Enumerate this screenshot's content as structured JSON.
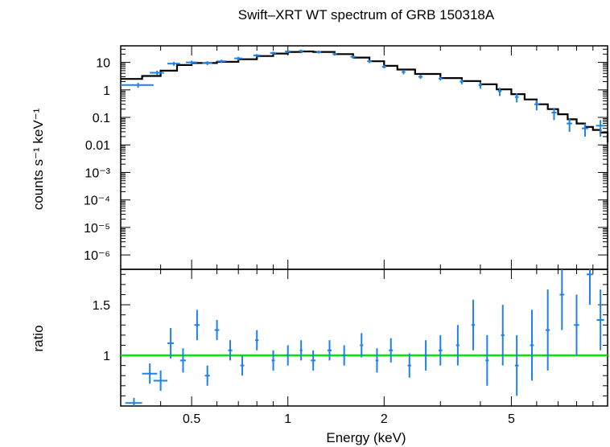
{
  "chart_data": [
    {
      "panel": "spectrum",
      "type": "scatter",
      "title": "Swift–XRT WT spectrum of GRB 150318A",
      "ylabel": "counts s⁻¹ keV⁻¹",
      "xlabel": "",
      "x_scale": "log",
      "y_scale": "log",
      "xlim": [
        0.3,
        10
      ],
      "ylim": [
        3e-07,
        40
      ],
      "y_ticks": [
        {
          "value": 10,
          "label": "10"
        },
        {
          "value": 1,
          "label": "1"
        },
        {
          "value": 0.1,
          "label": "0.1"
        },
        {
          "value": 0.01,
          "label": "0.01"
        },
        {
          "value": 0.001,
          "label": "10⁻³"
        },
        {
          "value": 0.0001,
          "label": "10⁻⁴"
        },
        {
          "value": 1e-05,
          "label": "10⁻⁵"
        },
        {
          "value": 1e-06,
          "label": "10⁻⁶"
        }
      ],
      "series": [
        {
          "kind": "data",
          "color": "#1e82e6",
          "points": [
            {
              "x": 0.34,
              "y": 1.5,
              "xerr": 0.04,
              "yerr": 0.3
            },
            {
              "x": 0.39,
              "y": 4.2,
              "xerr": 0.02,
              "yerr": 0.8
            },
            {
              "x": 0.44,
              "y": 9.0,
              "xerr": 0.02,
              "yerr": 1.5
            },
            {
              "x": 0.5,
              "y": 10.0,
              "xerr": 0.02,
              "yerr": 1.5
            },
            {
              "x": 0.56,
              "y": 9.5,
              "xerr": 0.02,
              "yerr": 1.5
            },
            {
              "x": 0.62,
              "y": 11.0,
              "xerr": 0.02,
              "yerr": 1.5
            },
            {
              "x": 0.7,
              "y": 14.0,
              "xerr": 0.02,
              "yerr": 2.0
            },
            {
              "x": 0.8,
              "y": 18.0,
              "xerr": 0.02,
              "yerr": 2.0
            },
            {
              "x": 0.9,
              "y": 22.0,
              "xerr": 0.02,
              "yerr": 2.5
            },
            {
              "x": 1.0,
              "y": 25.0,
              "xerr": 0.02,
              "yerr": 3.0
            },
            {
              "x": 1.1,
              "y": 26.0,
              "xerr": 0.02,
              "yerr": 3.0
            },
            {
              "x": 1.25,
              "y": 24.0,
              "xerr": 0.02,
              "yerr": 3.0
            },
            {
              "x": 1.4,
              "y": 20.0,
              "xerr": 0.02,
              "yerr": 2.5
            },
            {
              "x": 1.6,
              "y": 16.0,
              "xerr": 0.03,
              "yerr": 2.0
            },
            {
              "x": 1.8,
              "y": 11.0,
              "xerr": 0.03,
              "yerr": 1.5
            },
            {
              "x": 2.0,
              "y": 7.0,
              "xerr": 0.03,
              "yerr": 1.0
            },
            {
              "x": 2.3,
              "y": 4.5,
              "xerr": 0.03,
              "yerr": 0.8
            },
            {
              "x": 2.6,
              "y": 3.0,
              "xerr": 0.04,
              "yerr": 0.5
            },
            {
              "x": 3.0,
              "y": 2.6,
              "xerr": 0.04,
              "yerr": 0.4
            },
            {
              "x": 3.5,
              "y": 2.0,
              "xerr": 0.05,
              "yerr": 0.4
            },
            {
              "x": 4.0,
              "y": 1.5,
              "xerr": 0.05,
              "yerr": 0.4
            },
            {
              "x": 4.6,
              "y": 0.9,
              "xerr": 0.06,
              "yerr": 0.3
            },
            {
              "x": 5.2,
              "y": 0.55,
              "xerr": 0.07,
              "yerr": 0.2
            },
            {
              "x": 6.0,
              "y": 0.3,
              "xerr": 0.1,
              "yerr": 0.12
            },
            {
              "x": 6.8,
              "y": 0.15,
              "xerr": 0.12,
              "yerr": 0.07
            },
            {
              "x": 7.6,
              "y": 0.06,
              "xerr": 0.15,
              "yerr": 0.03
            },
            {
              "x": 8.5,
              "y": 0.04,
              "xerr": 0.2,
              "yerr": 0.02
            },
            {
              "x": 9.5,
              "y": 0.05,
              "xerr": 0.3,
              "yerr": 0.03
            }
          ]
        },
        {
          "kind": "model",
          "color": "#000000",
          "x": [
            0.3,
            0.35,
            0.4,
            0.45,
            0.5,
            0.6,
            0.7,
            0.8,
            0.9,
            1.0,
            1.1,
            1.2,
            1.4,
            1.6,
            1.8,
            2.0,
            2.2,
            2.5,
            3.0,
            3.5,
            4.0,
            4.5,
            5.0,
            5.5,
            6.0,
            6.5,
            7.0,
            7.5,
            8.0,
            8.5,
            9.0,
            9.5,
            10.0
          ],
          "y": [
            2.5,
            3.2,
            5.0,
            8.0,
            9.5,
            10.5,
            13.0,
            17.0,
            21.0,
            24.0,
            25.0,
            24.0,
            20.0,
            15.0,
            11.0,
            7.5,
            5.5,
            3.8,
            2.7,
            2.1,
            1.6,
            1.05,
            0.7,
            0.45,
            0.3,
            0.2,
            0.13,
            0.085,
            0.06,
            0.045,
            0.035,
            0.028,
            0.012
          ]
        }
      ]
    },
    {
      "panel": "ratio",
      "type": "scatter",
      "title": "",
      "xlabel": "Energy (keV)",
      "ylabel": "ratio",
      "x_scale": "log",
      "xlim": [
        0.3,
        10
      ],
      "ylim": [
        0.5,
        1.85
      ],
      "x_ticks": [
        {
          "value": 0.5,
          "label": "0.5"
        },
        {
          "value": 1,
          "label": "1"
        },
        {
          "value": 2,
          "label": "2"
        },
        {
          "value": 5,
          "label": "5"
        }
      ],
      "y_ticks": [
        {
          "value": 1,
          "label": "1"
        },
        {
          "value": 1.5,
          "label": "1.5"
        }
      ],
      "reference_line": {
        "y": 1.0,
        "color": "#00e600"
      },
      "series": [
        {
          "kind": "ratio",
          "color": "#1e82e6",
          "points": [
            {
              "x": 0.33,
              "y": 0.53,
              "xerr": 0.02,
              "yerr": 0.05
            },
            {
              "x": 0.37,
              "y": 0.82,
              "xerr": 0.02,
              "yerr": 0.1
            },
            {
              "x": 0.4,
              "y": 0.75,
              "xerr": 0.02,
              "yerr": 0.1
            },
            {
              "x": 0.43,
              "y": 1.12,
              "xerr": 0.01,
              "yerr": 0.15
            },
            {
              "x": 0.47,
              "y": 0.95,
              "xerr": 0.01,
              "yerr": 0.12
            },
            {
              "x": 0.52,
              "y": 1.3,
              "xerr": 0.01,
              "yerr": 0.15
            },
            {
              "x": 0.56,
              "y": 0.8,
              "xerr": 0.01,
              "yerr": 0.1
            },
            {
              "x": 0.6,
              "y": 1.25,
              "xerr": 0.01,
              "yerr": 0.1
            },
            {
              "x": 0.66,
              "y": 1.05,
              "xerr": 0.01,
              "yerr": 0.1
            },
            {
              "x": 0.72,
              "y": 0.9,
              "xerr": 0.01,
              "yerr": 0.1
            },
            {
              "x": 0.8,
              "y": 1.15,
              "xerr": 0.01,
              "yerr": 0.1
            },
            {
              "x": 0.9,
              "y": 0.95,
              "xerr": 0.01,
              "yerr": 0.1
            },
            {
              "x": 1.0,
              "y": 1.0,
              "xerr": 0.01,
              "yerr": 0.1
            },
            {
              "x": 1.1,
              "y": 1.05,
              "xerr": 0.01,
              "yerr": 0.1
            },
            {
              "x": 1.2,
              "y": 0.95,
              "xerr": 0.02,
              "yerr": 0.1
            },
            {
              "x": 1.35,
              "y": 1.05,
              "xerr": 0.02,
              "yerr": 0.1
            },
            {
              "x": 1.5,
              "y": 1.0,
              "xerr": 0.02,
              "yerr": 0.1
            },
            {
              "x": 1.7,
              "y": 1.1,
              "xerr": 0.02,
              "yerr": 0.12
            },
            {
              "x": 1.9,
              "y": 0.95,
              "xerr": 0.02,
              "yerr": 0.12
            },
            {
              "x": 2.1,
              "y": 1.05,
              "xerr": 0.03,
              "yerr": 0.12
            },
            {
              "x": 2.4,
              "y": 0.9,
              "xerr": 0.03,
              "yerr": 0.12
            },
            {
              "x": 2.7,
              "y": 1.0,
              "xerr": 0.03,
              "yerr": 0.15
            },
            {
              "x": 3.0,
              "y": 1.05,
              "xerr": 0.04,
              "yerr": 0.15
            },
            {
              "x": 3.4,
              "y": 1.1,
              "xerr": 0.04,
              "yerr": 0.2
            },
            {
              "x": 3.8,
              "y": 1.3,
              "xerr": 0.05,
              "yerr": 0.25
            },
            {
              "x": 4.2,
              "y": 0.95,
              "xerr": 0.05,
              "yerr": 0.25
            },
            {
              "x": 4.7,
              "y": 1.2,
              "xerr": 0.06,
              "yerr": 0.3
            },
            {
              "x": 5.2,
              "y": 0.9,
              "xerr": 0.07,
              "yerr": 0.3
            },
            {
              "x": 5.8,
              "y": 1.1,
              "xerr": 0.08,
              "yerr": 0.35
            },
            {
              "x": 6.5,
              "y": 1.25,
              "xerr": 0.1,
              "yerr": 0.4
            },
            {
              "x": 7.2,
              "y": 1.6,
              "xerr": 0.12,
              "yerr": 0.35
            },
            {
              "x": 8.0,
              "y": 1.3,
              "xerr": 0.15,
              "yerr": 0.3
            },
            {
              "x": 8.8,
              "y": 1.8,
              "xerr": 0.2,
              "yerr": 0.3
            },
            {
              "x": 9.5,
              "y": 1.35,
              "xerr": 0.25,
              "yerr": 0.3
            }
          ]
        }
      ]
    }
  ]
}
